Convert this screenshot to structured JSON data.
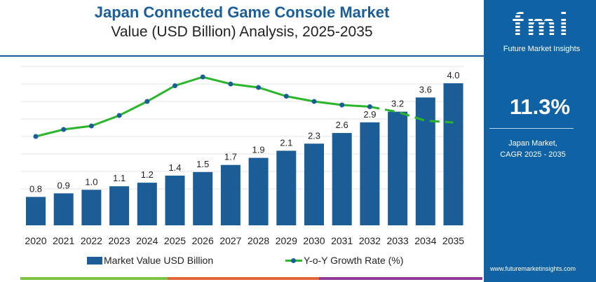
{
  "header": {
    "title": "Japan Connected Game Console Market",
    "subtitle": "Value (USD Billion) Analysis, 2025-2035"
  },
  "sidebar": {
    "logo_text": "fmi",
    "logo_caption": "Future Market Insights",
    "cagr_value": "11.3%",
    "cagr_label_line1": "Japan Market,",
    "cagr_label_line2": "CAGR 2025 - 2035",
    "url": "www.futuremarketinsights.com"
  },
  "colors": {
    "bar": "#1b5e97",
    "line": "#2bb52b",
    "marker": "#1b5e97",
    "sidebar": "#0f62a3",
    "bottom_bar": [
      "#7dc142",
      "#e0663a",
      "#8e3a96"
    ]
  },
  "chart_data": {
    "type": "bar+line",
    "categories": [
      "2020",
      "2021",
      "2022",
      "2023",
      "2024",
      "2025",
      "2026",
      "2027",
      "2028",
      "2029",
      "2030",
      "2031",
      "2032",
      "2033",
      "2034",
      "2035"
    ],
    "series": [
      {
        "name": "Market Value USD Billion",
        "type": "bar",
        "values": [
          0.8,
          0.9,
          1.0,
          1.1,
          1.2,
          1.4,
          1.5,
          1.7,
          1.9,
          2.1,
          2.3,
          2.6,
          2.9,
          3.2,
          3.6,
          4.0
        ],
        "labels": [
          "0.8",
          "0.9",
          "1.0",
          "1.1",
          "1.2",
          "1.4",
          "1.5",
          "1.7",
          "1.9",
          "2.1",
          "2.3",
          "2.6",
          "2.9",
          "3.2",
          "3.6",
          "4.0"
        ]
      },
      {
        "name": "Y-o-Y Growth Rate (%)",
        "type": "line",
        "values": [
          8.0,
          8.4,
          8.6,
          9.2,
          10.0,
          10.9,
          11.4,
          11.0,
          10.8,
          10.3,
          10.0,
          9.8,
          9.7,
          9.4,
          8.9,
          8.8
        ],
        "dashed_from": "2032"
      }
    ],
    "ylim": [
      0,
      4.0
    ],
    "grid": true,
    "legend": "bottom"
  }
}
